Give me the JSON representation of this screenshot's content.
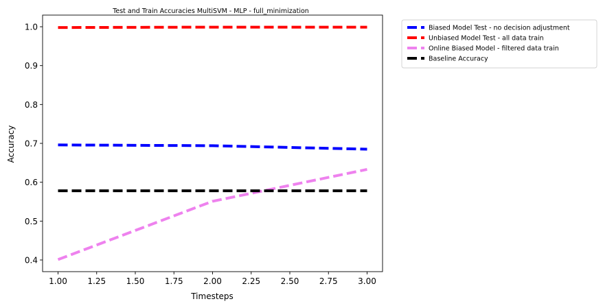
{
  "chart_data": {
    "type": "line",
    "title": "Test and Train Accuracies MultiSVM - MLP - full_minimization",
    "xlabel": "Timesteps",
    "ylabel": "Accuracy",
    "x": [
      1.0,
      2.0,
      3.0
    ],
    "xlim": [
      0.9,
      3.1
    ],
    "ylim": [
      0.37,
      1.03
    ],
    "xticks": [
      1.0,
      1.25,
      1.5,
      1.75,
      2.0,
      2.25,
      2.5,
      2.75,
      3.0
    ],
    "xtick_labels": [
      "1.00",
      "1.25",
      "1.50",
      "1.75",
      "2.00",
      "2.25",
      "2.50",
      "2.75",
      "3.00"
    ],
    "yticks": [
      0.4,
      0.5,
      0.6,
      0.7,
      0.8,
      0.9,
      1.0
    ],
    "ytick_labels": [
      "0.4",
      "0.5",
      "0.6",
      "0.7",
      "0.8",
      "0.9",
      "1.0"
    ],
    "grid": false,
    "legend_position": "outside-top-right",
    "series": [
      {
        "name": "Biased Model Test - no decision adjustment",
        "color": "#0000ff",
        "values": [
          0.696,
          0.694,
          0.685
        ]
      },
      {
        "name": "Unbiased Model Test - all data train",
        "color": "#ff0000",
        "values": [
          0.998,
          0.999,
          0.999
        ]
      },
      {
        "name": "Online Biased Model - filtered data train",
        "color": "#ee82ee",
        "values": [
          0.401,
          0.551,
          0.633
        ]
      },
      {
        "name": "Baseline Accuracy",
        "color": "#000000",
        "values": [
          0.578,
          0.578,
          0.578
        ]
      }
    ]
  }
}
